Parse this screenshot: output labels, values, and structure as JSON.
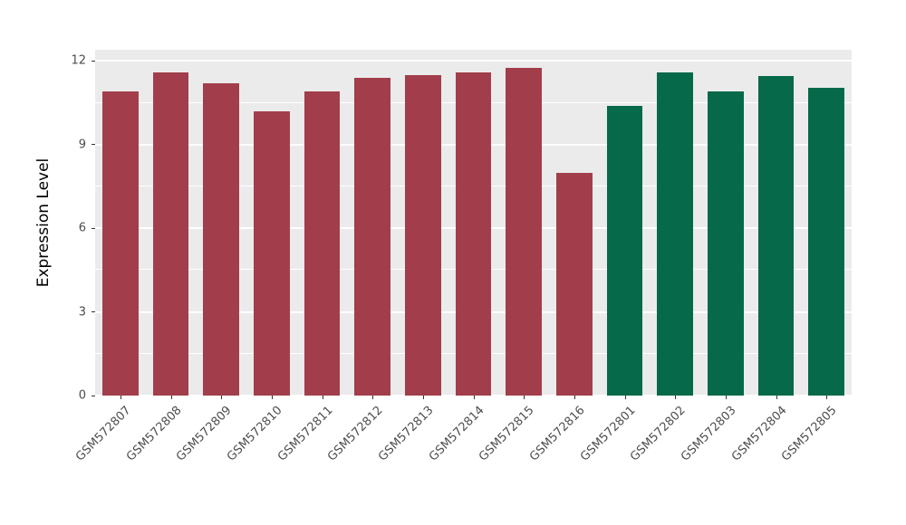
{
  "chart_data": {
    "type": "bar",
    "title": "",
    "xlabel": "",
    "ylabel": "Expression Level",
    "ylim": [
      0,
      12.4
    ],
    "yticks": [
      0,
      3,
      6,
      9,
      12
    ],
    "minor_gridlines": [
      1.5,
      4.5,
      7.5,
      10.5
    ],
    "grid": true,
    "legend": "none",
    "panel_bg": "#EBEBEB",
    "categories": [
      "GSM572807",
      "GSM572808",
      "GSM572809",
      "GSM572810",
      "GSM572811",
      "GSM572812",
      "GSM572813",
      "GSM572814",
      "GSM572815",
      "GSM572816",
      "GSM572801",
      "GSM572802",
      "GSM572803",
      "GSM572804",
      "GSM572805"
    ],
    "values": [
      10.9,
      11.6,
      11.2,
      10.2,
      10.9,
      11.4,
      11.5,
      11.6,
      11.75,
      8.0,
      10.4,
      11.6,
      10.9,
      11.45,
      11.05
    ],
    "groups": [
      "red",
      "red",
      "red",
      "red",
      "red",
      "red",
      "red",
      "red",
      "red",
      "red",
      "green",
      "green",
      "green",
      "green",
      "green"
    ],
    "group_colors": {
      "red": "#A23E4B",
      "green": "#05694A"
    }
  }
}
